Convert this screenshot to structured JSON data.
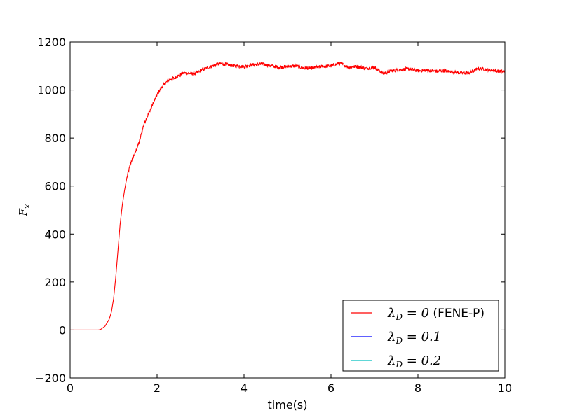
{
  "chart_data": {
    "type": "line",
    "xlabel": "time(s)",
    "ylabel": "F_x",
    "ylabel_display": {
      "main": "F",
      "sub": "x"
    },
    "xlim": [
      0,
      10
    ],
    "ylim": [
      -200,
      1200
    ],
    "xticks": [
      0,
      2,
      4,
      6,
      8,
      10
    ],
    "yticks": [
      -200,
      0,
      200,
      400,
      600,
      800,
      1000,
      1200
    ],
    "grid": false,
    "legend_position": "lower-right",
    "series": [
      {
        "name": "λ_D = 0 (FENE-P)",
        "label_display": {
          "lambda": "λ",
          "sub": "D",
          "rest": " = 0",
          "suffix": " (FENE-P)"
        },
        "color": "#ff0000",
        "x": [
          0,
          0.5,
          0.65,
          0.7,
          0.8,
          0.9,
          0.95,
          1.0,
          1.05,
          1.1,
          1.15,
          1.2,
          1.25,
          1.3,
          1.35,
          1.4,
          1.45,
          1.5,
          1.6,
          1.7,
          1.8,
          1.9,
          2.0,
          2.1,
          2.2,
          2.3,
          2.4,
          2.5,
          2.6,
          2.7,
          2.8,
          2.9,
          3.0,
          3.2,
          3.4,
          3.5,
          3.6,
          3.8,
          4.0,
          4.2,
          4.4,
          4.6,
          4.8,
          5.0,
          5.2,
          5.4,
          5.6,
          5.8,
          6.0,
          6.2,
          6.4,
          6.6,
          6.8,
          7.0,
          7.2,
          7.4,
          7.6,
          7.8,
          8.0,
          8.2,
          8.4,
          8.6,
          8.8,
          9.0,
          9.2,
          9.4,
          9.6,
          9.8,
          10.0
        ],
        "values": [
          0,
          0,
          0,
          2,
          15,
          45,
          75,
          130,
          220,
          330,
          440,
          520,
          580,
          630,
          665,
          700,
          720,
          740,
          790,
          860,
          900,
          940,
          980,
          1010,
          1030,
          1045,
          1050,
          1060,
          1070,
          1070,
          1068,
          1070,
          1080,
          1095,
          1108,
          1110,
          1105,
          1100,
          1098,
          1105,
          1108,
          1102,
          1095,
          1098,
          1100,
          1090,
          1092,
          1098,
          1100,
          1112,
          1095,
          1098,
          1090,
          1095,
          1068,
          1080,
          1085,
          1088,
          1080,
          1082,
          1078,
          1080,
          1075,
          1070,
          1072,
          1090,
          1085,
          1080,
          1075
        ]
      },
      {
        "name": "λ_D = 0.1",
        "label_display": {
          "lambda": "λ",
          "sub": "D",
          "rest": " = 0.1",
          "suffix": ""
        },
        "color": "#0000ff",
        "x": [],
        "values": []
      },
      {
        "name": "λ_D = 0.2",
        "label_display": {
          "lambda": "λ",
          "sub": "D",
          "rest": " = 0.2",
          "suffix": ""
        },
        "color": "#00bfbf",
        "x": [],
        "values": []
      }
    ]
  }
}
